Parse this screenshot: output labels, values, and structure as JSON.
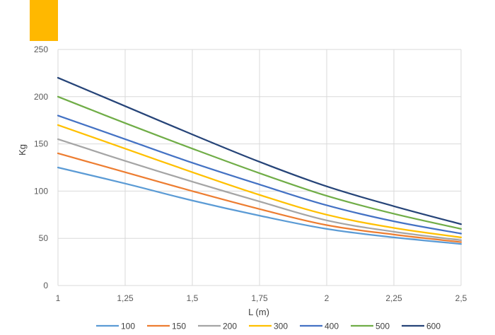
{
  "header": {
    "accent_color": "#FFB800"
  },
  "chart_data": {
    "type": "line",
    "xlabel": "L (m)",
    "ylabel": "Kg",
    "xlim": [
      1,
      2.5
    ],
    "ylim": [
      0,
      250
    ],
    "xticks": [
      1,
      1.25,
      1.5,
      1.75,
      2,
      2.25,
      2.5
    ],
    "xtick_labels": [
      "1",
      "1,25",
      "1,5",
      "1,75",
      "2",
      "2,25",
      "2,5"
    ],
    "yticks": [
      0,
      50,
      100,
      150,
      200,
      250
    ],
    "ytick_labels": [
      "0",
      "50",
      "100",
      "150",
      "200",
      "250"
    ],
    "grid": true,
    "legend_position": "bottom",
    "x": [
      1,
      1.25,
      1.5,
      1.75,
      2,
      2.25,
      2.5
    ],
    "series": [
      {
        "name": "100",
        "color": "#5B9BD5",
        "values": [
          125,
          108,
          90,
          74,
          60,
          51,
          44
        ]
      },
      {
        "name": "150",
        "color": "#ED7D31",
        "values": [
          140,
          120,
          100,
          81,
          64,
          54,
          46
        ]
      },
      {
        "name": "200",
        "color": "#A5A5A5",
        "values": [
          155,
          132,
          110,
          89,
          69,
          57,
          48
        ]
      },
      {
        "name": "300",
        "color": "#FFC000",
        "values": [
          170,
          145,
          120,
          96,
          75,
          61,
          51
        ]
      },
      {
        "name": "400",
        "color": "#4472C4",
        "values": [
          180,
          155,
          130,
          107,
          85,
          68,
          55
        ]
      },
      {
        "name": "500",
        "color": "#70AD47",
        "values": [
          200,
          172,
          145,
          119,
          95,
          76,
          60
        ]
      },
      {
        "name": "600",
        "color": "#264478",
        "values": [
          220,
          190,
          160,
          131,
          105,
          84,
          65
        ]
      }
    ]
  }
}
